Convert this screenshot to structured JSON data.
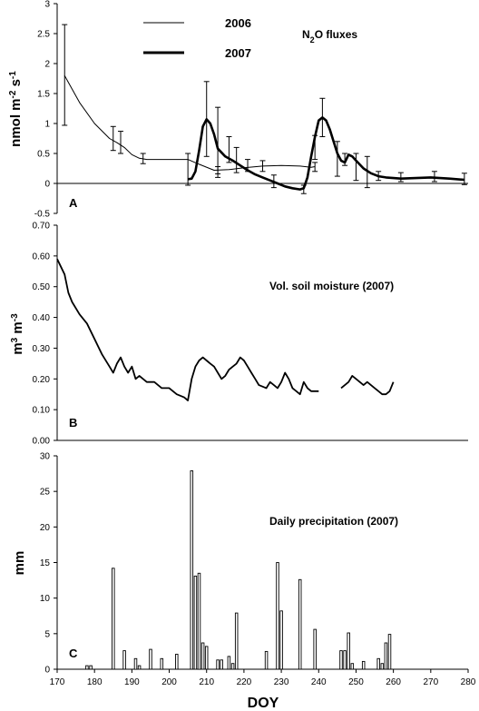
{
  "chart_data": [
    {
      "panel": "A",
      "type": "line",
      "ylabel_parts": [
        "nmol m",
        "-2",
        " s",
        "-1"
      ],
      "annotation_parts": [
        "N",
        "2",
        "O fluxes"
      ],
      "ylim": [
        -0.5,
        3
      ],
      "yticks": [
        "-0.5",
        "0",
        "0.5",
        "1",
        "1.5",
        "2",
        "2.5",
        "3"
      ],
      "xlim": [
        170,
        280
      ],
      "legend_position": "top",
      "series": [
        {
          "name": "2006",
          "x": [
            172,
            176,
            180,
            184,
            186,
            188,
            190,
            192,
            194,
            197,
            200,
            202,
            205,
            208,
            212,
            216,
            220,
            225,
            230,
            235,
            238,
            239
          ],
          "y": [
            1.8,
            1.35,
            1.0,
            0.75,
            0.68,
            0.6,
            0.48,
            0.42,
            0.4,
            0.4,
            0.4,
            0.4,
            0.4,
            0.32,
            0.22,
            0.23,
            0.26,
            0.29,
            0.3,
            0.29,
            0.27,
            0.28
          ],
          "errorbars": [
            {
              "x": 172,
              "lo": 0.97,
              "hi": 2.65
            },
            {
              "x": 185,
              "lo": 0.55,
              "hi": 0.95
            },
            {
              "x": 187,
              "lo": 0.5,
              "hi": 0.87
            },
            {
              "x": 193,
              "lo": 0.33,
              "hi": 0.5
            },
            {
              "x": 213,
              "lo": 0.16,
              "hi": 0.28
            },
            {
              "x": 225,
              "lo": 0.2,
              "hi": 0.38
            },
            {
              "x": 239,
              "lo": 0.2,
              "hi": 0.35
            }
          ]
        },
        {
          "name": "2007",
          "x": [
            205,
            206,
            207,
            208,
            209,
            210,
            211,
            212,
            213,
            215,
            217,
            219,
            221,
            223,
            225,
            227,
            229,
            231,
            233,
            235,
            236,
            237,
            238,
            239,
            240,
            241,
            242,
            243,
            244,
            245,
            246,
            247,
            248,
            249,
            250,
            252,
            254,
            256,
            258,
            262,
            266,
            270,
            275,
            279
          ],
          "y": [
            0.07,
            0.08,
            0.2,
            0.55,
            0.95,
            1.07,
            1.0,
            0.82,
            0.58,
            0.45,
            0.38,
            0.3,
            0.22,
            0.15,
            0.1,
            0.05,
            0.0,
            -0.05,
            -0.08,
            -0.1,
            -0.08,
            0.1,
            0.45,
            0.78,
            1.05,
            1.1,
            1.05,
            0.9,
            0.7,
            0.5,
            0.38,
            0.35,
            0.48,
            0.45,
            0.38,
            0.25,
            0.17,
            0.12,
            0.1,
            0.08,
            0.09,
            0.1,
            0.08,
            0.06
          ],
          "errorbars": [
            {
              "x": 205,
              "lo": -0.03,
              "hi": 0.5
            },
            {
              "x": 210,
              "lo": 0.45,
              "hi": 1.7
            },
            {
              "x": 213,
              "lo": 0.1,
              "hi": 1.27
            },
            {
              "x": 216,
              "lo": 0.35,
              "hi": 0.78
            },
            {
              "x": 218,
              "lo": 0.18,
              "hi": 0.6
            },
            {
              "x": 221,
              "lo": 0.2,
              "hi": 0.4
            },
            {
              "x": 228,
              "lo": -0.07,
              "hi": 0.14
            },
            {
              "x": 236,
              "lo": -0.17,
              "hi": -0.03
            },
            {
              "x": 239,
              "lo": 0.4,
              "hi": 0.8
            },
            {
              "x": 241,
              "lo": 0.78,
              "hi": 1.42
            },
            {
              "x": 245,
              "lo": 0.12,
              "hi": 0.7
            },
            {
              "x": 247,
              "lo": 0.3,
              "hi": 0.5
            },
            {
              "x": 250,
              "lo": 0.05,
              "hi": 0.5
            },
            {
              "x": 253,
              "lo": -0.07,
              "hi": 0.45
            },
            {
              "x": 256,
              "lo": 0.05,
              "hi": 0.2
            },
            {
              "x": 262,
              "lo": 0.03,
              "hi": 0.18
            },
            {
              "x": 271,
              "lo": 0.03,
              "hi": 0.2
            },
            {
              "x": 279,
              "lo": -0.02,
              "hi": 0.17
            }
          ]
        }
      ]
    },
    {
      "panel": "B",
      "type": "line",
      "ylabel_parts": [
        "m",
        "3",
        " m",
        "-3"
      ],
      "annotation": "Vol. soil moisture (2007)",
      "ylim": [
        0,
        0.7
      ],
      "yticks": [
        "0.00",
        "0.10",
        "0.20",
        "0.30",
        "0.40",
        "0.50",
        "0.60",
        "0.70"
      ],
      "xlim": [
        170,
        280
      ],
      "series": [
        {
          "name": "",
          "segments": [
            {
              "x": [
                170,
                172,
                173,
                174,
                176,
                178,
                180,
                182,
                184,
                185,
                186,
                187,
                188,
                189,
                190,
                191,
                192,
                193,
                194,
                196,
                198,
                200,
                202,
                204,
                205,
                206,
                207,
                208,
                209,
                210,
                211,
                212,
                213,
                214,
                215,
                216,
                217,
                218,
                219,
                220,
                221,
                222,
                223,
                224,
                226,
                227,
                228,
                229,
                230,
                231,
                232,
                233,
                234,
                235,
                236,
                237,
                238,
                239,
                240
              ],
              "y": [
                0.59,
                0.54,
                0.48,
                0.45,
                0.41,
                0.38,
                0.33,
                0.28,
                0.24,
                0.22,
                0.25,
                0.27,
                0.24,
                0.22,
                0.24,
                0.2,
                0.21,
                0.2,
                0.19,
                0.19,
                0.17,
                0.17,
                0.15,
                0.14,
                0.13,
                0.2,
                0.24,
                0.26,
                0.27,
                0.26,
                0.25,
                0.24,
                0.22,
                0.2,
                0.21,
                0.23,
                0.24,
                0.25,
                0.27,
                0.26,
                0.24,
                0.22,
                0.2,
                0.18,
                0.17,
                0.19,
                0.18,
                0.17,
                0.19,
                0.22,
                0.2,
                0.17,
                0.16,
                0.15,
                0.19,
                0.17,
                0.16,
                0.16,
                0.16
              ]
            },
            {
              "x": [
                246,
                247,
                248,
                249,
                250,
                251,
                252,
                253,
                254,
                255,
                256,
                257,
                258,
                259,
                260
              ],
              "y": [
                0.17,
                0.18,
                0.19,
                0.21,
                0.2,
                0.19,
                0.18,
                0.19,
                0.18,
                0.17,
                0.16,
                0.15,
                0.15,
                0.16,
                0.19
              ]
            }
          ]
        }
      ]
    },
    {
      "panel": "C",
      "type": "bar",
      "ylabel": "mm",
      "annotation": "Daily precipitation (2007)",
      "ylim": [
        0,
        30
      ],
      "yticks": [
        "0",
        "5",
        "10",
        "15",
        "20",
        "25",
        "30"
      ],
      "xlim": [
        170,
        280
      ],
      "xticks": [
        "170",
        "180",
        "190",
        "200",
        "210",
        "220",
        "230",
        "240",
        "250",
        "260",
        "270",
        "280"
      ],
      "xlabel": "DOY",
      "bars": [
        {
          "x": 178,
          "v": 0.5
        },
        {
          "x": 179,
          "v": 0.5
        },
        {
          "x": 185,
          "v": 14.2
        },
        {
          "x": 188,
          "v": 2.6
        },
        {
          "x": 191,
          "v": 1.5
        },
        {
          "x": 192,
          "v": 0.5
        },
        {
          "x": 195,
          "v": 2.8
        },
        {
          "x": 198,
          "v": 1.5
        },
        {
          "x": 202,
          "v": 2.1
        },
        {
          "x": 206,
          "v": 27.9
        },
        {
          "x": 207,
          "v": 13.1
        },
        {
          "x": 208,
          "v": 13.5
        },
        {
          "x": 209,
          "v": 3.7
        },
        {
          "x": 210,
          "v": 3.2
        },
        {
          "x": 213,
          "v": 1.3
        },
        {
          "x": 214,
          "v": 1.3
        },
        {
          "x": 216,
          "v": 1.8
        },
        {
          "x": 217,
          "v": 0.8
        },
        {
          "x": 218,
          "v": 7.9
        },
        {
          "x": 226,
          "v": 2.5
        },
        {
          "x": 229,
          "v": 15.0
        },
        {
          "x": 230,
          "v": 8.2
        },
        {
          "x": 235,
          "v": 12.6
        },
        {
          "x": 239,
          "v": 5.6
        },
        {
          "x": 246,
          "v": 2.6
        },
        {
          "x": 247,
          "v": 2.6
        },
        {
          "x": 248,
          "v": 5.1
        },
        {
          "x": 249,
          "v": 0.8
        },
        {
          "x": 252,
          "v": 1.1
        },
        {
          "x": 256,
          "v": 1.5
        },
        {
          "x": 257,
          "v": 0.8
        },
        {
          "x": 258,
          "v": 3.7
        },
        {
          "x": 259,
          "v": 4.9
        }
      ]
    }
  ]
}
